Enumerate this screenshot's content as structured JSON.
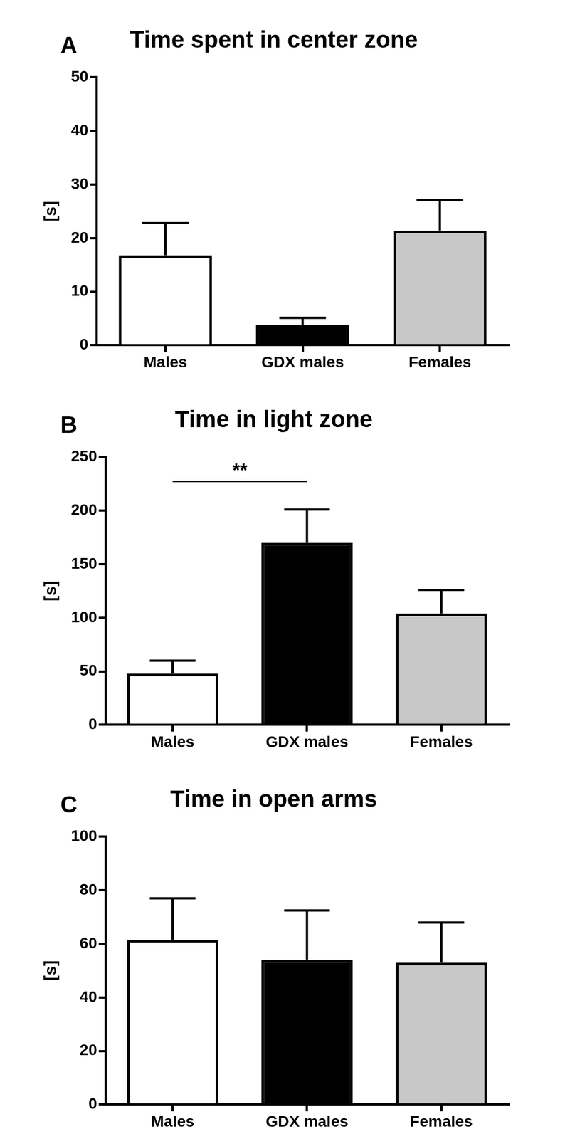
{
  "chart_data": [
    {
      "type": "bar",
      "panel": "A",
      "title": "Time spent in center zone",
      "y_label": "[s]",
      "categories": [
        "Males",
        "GDX males",
        "Females"
      ],
      "values": [
        16.8,
        3.8,
        21.4
      ],
      "errors": [
        6.0,
        1.3,
        5.7
      ],
      "colors": [
        "#ffffff",
        "#000000",
        "#c8c8c8"
      ],
      "ylim": [
        0,
        50
      ],
      "yticks": [
        0,
        10,
        20,
        30,
        40,
        50
      ],
      "grid": false
    },
    {
      "type": "bar",
      "panel": "B",
      "title": "Time in light zone",
      "y_label": "[s]",
      "categories": [
        "Males",
        "GDX males",
        "Females"
      ],
      "values": [
        48,
        170,
        104
      ],
      "errors": [
        12,
        31,
        22
      ],
      "colors": [
        "#ffffff",
        "#000000",
        "#c8c8c8"
      ],
      "ylim": [
        0,
        250
      ],
      "yticks": [
        0,
        50,
        100,
        150,
        200,
        250
      ],
      "grid": false,
      "annotations": [
        {
          "text": "**",
          "from": "Males",
          "to": "GDX males"
        }
      ]
    },
    {
      "type": "bar",
      "panel": "C",
      "title": "Time in open arms",
      "y_label": "[s]",
      "categories": [
        "Males",
        "GDX males",
        "Females"
      ],
      "values": [
        61.5,
        54,
        53
      ],
      "errors": [
        15.5,
        18.5,
        15
      ],
      "colors": [
        "#ffffff",
        "#000000",
        "#c8c8c8"
      ],
      "ylim": [
        0,
        100
      ],
      "yticks": [
        0,
        20,
        40,
        60,
        80,
        100
      ],
      "grid": false
    }
  ]
}
